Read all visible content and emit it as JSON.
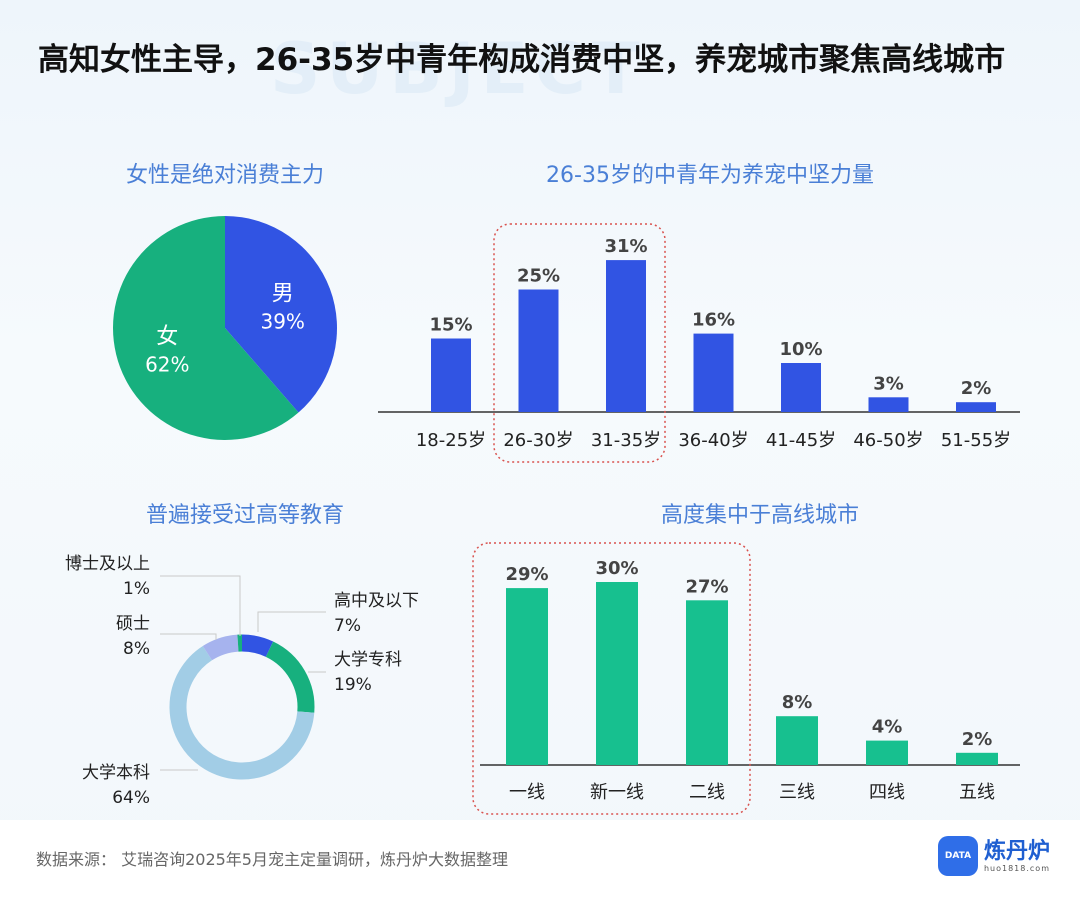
{
  "watermark": "SUBJECT",
  "title": "高知女性主导，26-35岁中青年构成消费中坚，养宠城市聚焦高线城市",
  "sections": {
    "gender": "女性是绝对消费主力",
    "age": "26-35岁的中青年为养宠中坚力量",
    "education": "普遍接受过高等教育",
    "city": "高度集中于高线城市"
  },
  "footer": {
    "source": "数据来源：  艾瑞咨询2025年5月宠主定量调研，炼丹炉大数据整理",
    "logo_text": "炼丹炉",
    "logo_icon": "DATA",
    "logo_url": "huo1818.com"
  },
  "colors": {
    "blue": "#3154e3",
    "green": "#17c08f",
    "pie_green": "#17b07e",
    "light_blue": "#a2cde6",
    "lavender": "#a6b3ee",
    "highlight_border": "#d9534f"
  },
  "chart_data": [
    {
      "id": "gender",
      "type": "pie",
      "labels": [
        "男",
        "女"
      ],
      "values": [
        39,
        62
      ],
      "value_labels": [
        "39%",
        "62%"
      ]
    },
    {
      "id": "age",
      "type": "bar",
      "categories": [
        "18-25岁",
        "26-30岁",
        "31-35岁",
        "36-40岁",
        "41-45岁",
        "46-50岁",
        "51-55岁"
      ],
      "values": [
        15,
        25,
        31,
        16,
        10,
        3,
        2
      ],
      "value_labels": [
        "15%",
        "25%",
        "31%",
        "16%",
        "10%",
        "3%",
        "2%"
      ],
      "highlight": [
        "26-30岁",
        "31-35岁"
      ]
    },
    {
      "id": "education",
      "type": "pie",
      "subtype": "donut",
      "labels": [
        "高中及以下",
        "大学专科",
        "大学本科",
        "硕士",
        "博士及以上"
      ],
      "values": [
        7,
        19,
        64,
        8,
        1
      ],
      "value_labels": [
        "7%",
        "19%",
        "64%",
        "8%",
        "1%"
      ]
    },
    {
      "id": "city",
      "type": "bar",
      "categories": [
        "一线",
        "新一线",
        "二线",
        "三线",
        "四线",
        "五线"
      ],
      "values": [
        29,
        30,
        27,
        8,
        4,
        2
      ],
      "value_labels": [
        "29%",
        "30%",
        "27%",
        "8%",
        "4%",
        "2%"
      ],
      "highlight": [
        "一线",
        "新一线",
        "二线"
      ]
    }
  ]
}
